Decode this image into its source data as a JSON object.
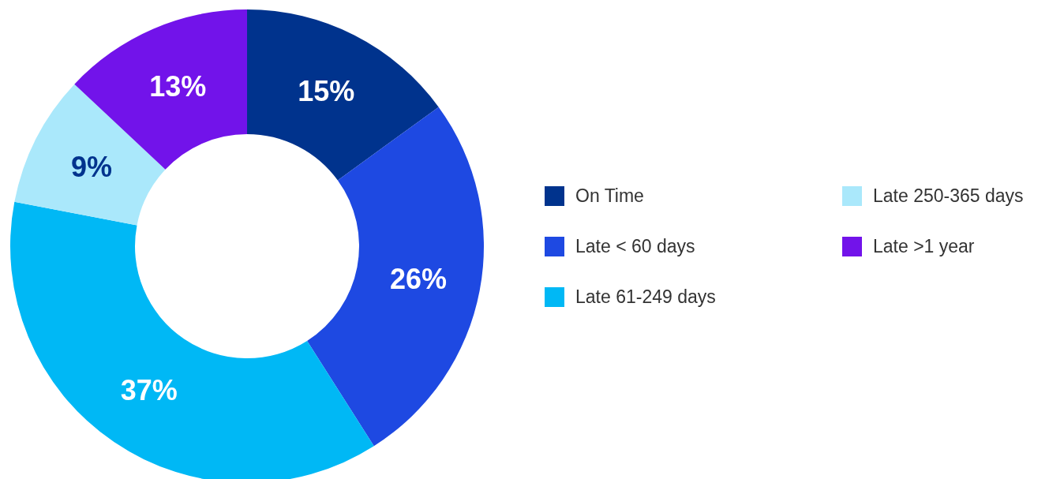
{
  "chart_data": {
    "type": "donut",
    "categories": [
      "On Time",
      "Late < 60 days",
      "Late 61-249 days",
      "Late 250-365 days",
      "Late >1 year"
    ],
    "values": [
      15,
      26,
      37,
      9,
      13
    ],
    "colors": [
      "#00338d",
      "#1e49e2",
      "#00b8f5",
      "#aae8fb",
      "#7213ea"
    ],
    "value_labels": [
      "15%",
      "26%",
      "37%",
      "9%",
      "13%"
    ],
    "legend": "right"
  }
}
